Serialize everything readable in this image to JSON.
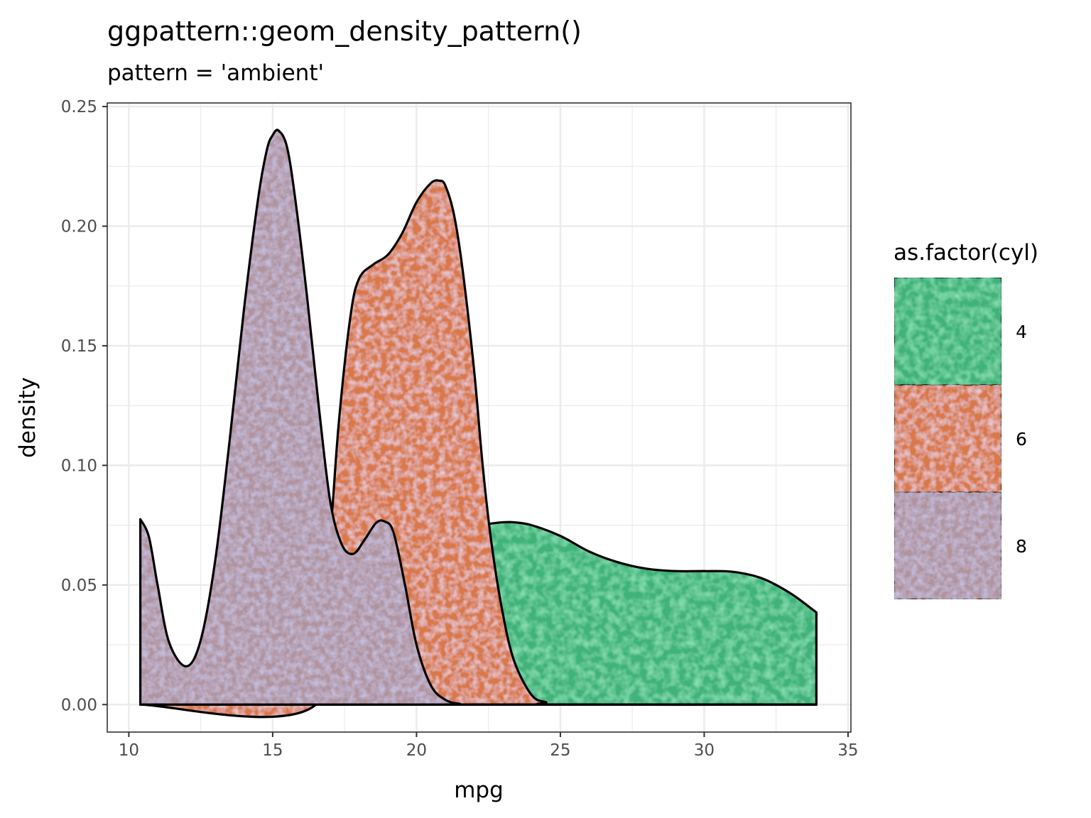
{
  "chart_data": {
    "type": "area",
    "title": "ggpattern::geom_density_pattern()",
    "subtitle": "pattern = 'ambient'",
    "xlabel": "mpg",
    "ylabel": "density",
    "xlim": [
      9.25,
      35.1
    ],
    "ylim": [
      -0.0115,
      0.2515
    ],
    "xticks": [
      "10",
      "15",
      "20",
      "25",
      "30",
      "35"
    ],
    "yticks": [
      "0.00",
      "0.05",
      "0.10",
      "0.15",
      "0.20",
      "0.25"
    ],
    "grid": true,
    "legend": {
      "title": "as.factor(cyl)",
      "position": "right",
      "entries": [
        "4",
        "6",
        "8"
      ]
    },
    "series": [
      {
        "name": "4",
        "color": "#3fb27a",
        "x": [
          10.4,
          21.4,
          22.0,
          22.5,
          23.0,
          23.4,
          24.0,
          25.0,
          26.0,
          27.0,
          28.0,
          29.0,
          30.0,
          31.0,
          32.0,
          33.0,
          33.9
        ],
        "y": [
          0.0,
          0.068,
          0.074,
          0.0755,
          0.0762,
          0.0762,
          0.075,
          0.0705,
          0.064,
          0.0595,
          0.0568,
          0.0558,
          0.0558,
          0.0555,
          0.0528,
          0.0465,
          0.0385
        ]
      },
      {
        "name": "6",
        "color": "#d9784a",
        "x": [
          10.4,
          16.5,
          17.0,
          17.3,
          17.7,
          18.0,
          18.5,
          19.0,
          19.5,
          20.0,
          20.5,
          20.8,
          21.0,
          21.3,
          21.6,
          22.0,
          22.3,
          22.6,
          23.0,
          23.4,
          24.0,
          24.5,
          25.0,
          33.9
        ],
        "y": [
          0.0,
          0.0,
          0.07,
          0.118,
          0.162,
          0.178,
          0.184,
          0.188,
          0.197,
          0.21,
          0.218,
          0.219,
          0.217,
          0.205,
          0.182,
          0.14,
          0.1,
          0.068,
          0.038,
          0.018,
          0.004,
          0.001,
          0.0,
          0.0
        ]
      },
      {
        "name": "8",
        "color": "#b0939d",
        "x": [
          10.4,
          10.7,
          11.0,
          11.4,
          12.0,
          12.5,
          13.0,
          13.5,
          14.0,
          14.5,
          14.8,
          15.0,
          15.2,
          15.5,
          15.8,
          16.2,
          16.6,
          17.0,
          17.4,
          17.8,
          18.2,
          18.6,
          18.9,
          19.2,
          19.6,
          20.0,
          20.5,
          21.0,
          21.5,
          22.0,
          33.9
        ],
        "y": [
          0.0775,
          0.07,
          0.05,
          0.026,
          0.016,
          0.027,
          0.06,
          0.11,
          0.165,
          0.212,
          0.232,
          0.238,
          0.24,
          0.233,
          0.21,
          0.17,
          0.125,
          0.085,
          0.067,
          0.063,
          0.069,
          0.076,
          0.0765,
          0.072,
          0.05,
          0.025,
          0.008,
          0.002,
          0.0003,
          0.0,
          0.0
        ]
      }
    ]
  }
}
